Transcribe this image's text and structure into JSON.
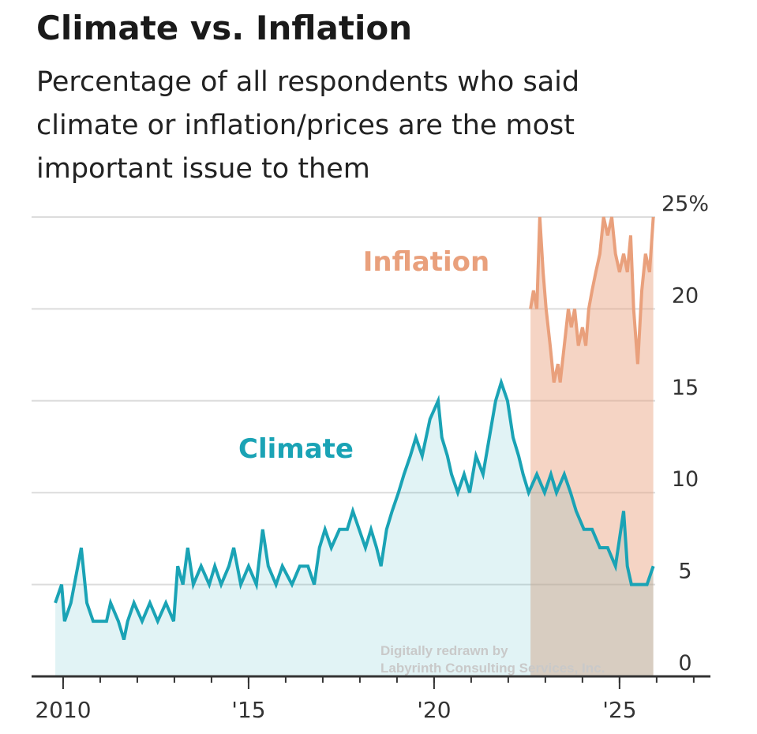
{
  "chart_data": {
    "type": "line",
    "title": "Climate vs. Inflation",
    "subtitle": [
      "Percentage of all respondents who said",
      "climate or inflation/prices are the most",
      "important issue to them"
    ],
    "note": [
      "Digitally redrawn by",
      "Labyrinth Consulting Services, Inc."
    ],
    "xlim": [
      2009.15,
      2027.45
    ],
    "xticks": [
      {
        "value": 2010,
        "label": "2010"
      },
      {
        "value": 2015,
        "label": "'15"
      },
      {
        "value": 2020,
        "label": "'20"
      },
      {
        "value": 2025,
        "label": "'25"
      }
    ],
    "ylim": [
      0,
      25
    ],
    "yticks": [
      0,
      5,
      10,
      15,
      20,
      {
        "value": 25,
        "label": "25%"
      }
    ],
    "grid": true,
    "area": true,
    "series": [
      {
        "name": "Climate",
        "color": "#1aa3b5",
        "x": [
          2009.79,
          2009.96,
          2010.04,
          2010.21,
          2010.49,
          2010.64,
          2010.81,
          2011.17,
          2011.28,
          2011.49,
          2011.64,
          2011.74,
          2011.91,
          2012.13,
          2012.34,
          2012.55,
          2012.77,
          2012.98,
          2013.09,
          2013.23,
          2013.36,
          2013.51,
          2013.72,
          2013.94,
          2014.09,
          2014.26,
          2014.47,
          2014.6,
          2014.79,
          2015.0,
          2015.21,
          2015.38,
          2015.53,
          2015.74,
          2015.91,
          2016.17,
          2016.38,
          2016.6,
          2016.77,
          2016.91,
          2017.06,
          2017.23,
          2017.45,
          2017.66,
          2017.81,
          2017.98,
          2018.15,
          2018.3,
          2018.45,
          2018.57,
          2018.72,
          2018.87,
          2019.04,
          2019.19,
          2019.36,
          2019.51,
          2019.68,
          2019.89,
          2020.11,
          2020.21,
          2020.36,
          2020.47,
          2020.64,
          2020.81,
          2020.96,
          2021.13,
          2021.32,
          2021.49,
          2021.66,
          2021.81,
          2021.98,
          2022.13,
          2022.28,
          2022.4,
          2022.55,
          2022.77,
          2022.98,
          2023.15,
          2023.3,
          2023.51,
          2023.68,
          2023.83,
          2024.04,
          2024.26,
          2024.47,
          2024.68,
          2024.89,
          2025.11,
          2025.21,
          2025.32,
          2025.53,
          2025.74,
          2025.91
        ],
        "values": [
          4,
          5,
          3,
          4,
          7,
          4,
          3,
          3,
          4,
          3,
          2,
          3,
          4,
          3,
          4,
          3,
          4,
          3,
          6,
          5,
          7,
          5,
          6,
          5,
          6,
          5,
          6,
          7,
          5,
          6,
          5,
          8,
          6,
          5,
          6,
          5,
          6,
          6,
          5,
          7,
          8,
          7,
          8,
          8,
          9,
          8,
          7,
          8,
          7,
          6,
          8,
          9,
          10,
          11,
          12,
          13,
          12,
          14,
          15,
          13,
          12,
          11,
          10,
          11,
          10,
          12,
          11,
          13,
          15,
          16,
          15,
          13,
          12,
          11,
          10,
          11,
          10,
          11,
          10,
          11,
          10,
          9,
          8,
          8,
          7,
          7,
          6,
          9,
          6,
          5,
          5,
          5,
          6
        ]
      },
      {
        "name": "Inflation",
        "color": "#e9a07c",
        "x": [
          2022.6,
          2022.68,
          2022.77,
          2022.85,
          2022.94,
          2023.02,
          2023.13,
          2023.23,
          2023.34,
          2023.4,
          2023.51,
          2023.62,
          2023.7,
          2023.79,
          2023.89,
          2024.0,
          2024.09,
          2024.17,
          2024.26,
          2024.36,
          2024.47,
          2024.57,
          2024.68,
          2024.79,
          2024.89,
          2025.0,
          2025.11,
          2025.21,
          2025.3,
          2025.38,
          2025.49,
          2025.6,
          2025.7,
          2025.81,
          2025.91
        ],
        "values": [
          20,
          21,
          20,
          25,
          22,
          20,
          18,
          16,
          17,
          16,
          18,
          20,
          19,
          20,
          18,
          19,
          18,
          20,
          21,
          22,
          23,
          25,
          24,
          25,
          23,
          22,
          23,
          22,
          24,
          20,
          17,
          21,
          23,
          22,
          25
        ]
      }
    ]
  }
}
